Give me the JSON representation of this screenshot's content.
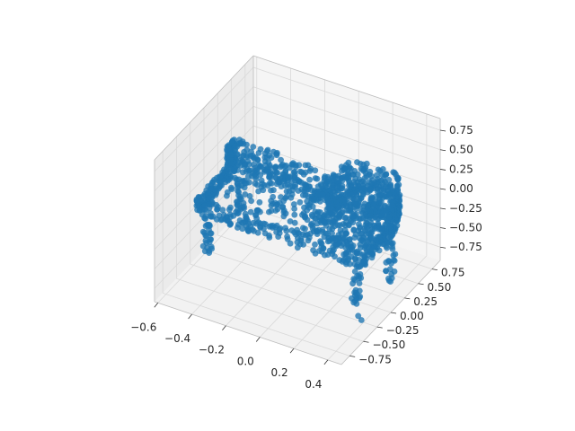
{
  "chart_data": {
    "type": "scatter",
    "projection": "3d",
    "title": "",
    "xlabel": "",
    "ylabel": "",
    "zlabel": "",
    "xlim": [
      -0.62,
      0.48
    ],
    "ylim": [
      -0.9,
      0.9
    ],
    "zlim": [
      -0.92,
      0.9
    ],
    "x_ticks": [
      -0.6,
      -0.4,
      -0.2,
      0.0,
      0.2,
      0.4
    ],
    "x_tick_labels": [
      "−0.6",
      "−0.4",
      "−0.2",
      "0.0",
      "0.2",
      "0.4"
    ],
    "y_ticks": [
      -0.75,
      -0.5,
      -0.25,
      0.0,
      0.25,
      0.5,
      0.75
    ],
    "y_tick_labels": [
      "−0.75",
      "−0.50",
      "−0.25",
      "0.00",
      "0.25",
      "0.50",
      "0.75"
    ],
    "z_ticks": [
      -0.75,
      -0.5,
      -0.25,
      0.0,
      0.25,
      0.5,
      0.75
    ],
    "z_tick_labels": [
      "−0.75",
      "−0.50",
      "−0.25",
      "0.00",
      "0.25",
      "0.50",
      "0.75"
    ],
    "grid": true,
    "marker_color": "#1f77b4",
    "pane_color": "#f2f2f2",
    "object": {
      "seat": {
        "x": [
          -0.55,
          0.42
        ],
        "y": [
          -0.35,
          0.35
        ],
        "z": [
          -0.15,
          0.05
        ]
      },
      "backrest": {
        "x": [
          -0.55,
          0.42
        ],
        "y": [
          0.2,
          0.35
        ],
        "z": [
          0.05,
          0.3
        ]
      },
      "armrest": {
        "x": [
          0.12,
          0.42
        ],
        "y": [
          -0.35,
          0.35
        ],
        "z": [
          0.05,
          0.55
        ]
      },
      "legs": [
        {
          "x": -0.5,
          "y": -0.3,
          "z": [
            -0.7,
            -0.15
          ]
        },
        {
          "x": -0.5,
          "y": 0.3,
          "z": [
            -0.7,
            -0.15
          ]
        },
        {
          "x": 0.38,
          "y": -0.3,
          "z": [
            -0.85,
            -0.15
          ]
        },
        {
          "x": 0.38,
          "y": 0.3,
          "z": [
            -0.85,
            -0.15
          ]
        }
      ]
    }
  }
}
